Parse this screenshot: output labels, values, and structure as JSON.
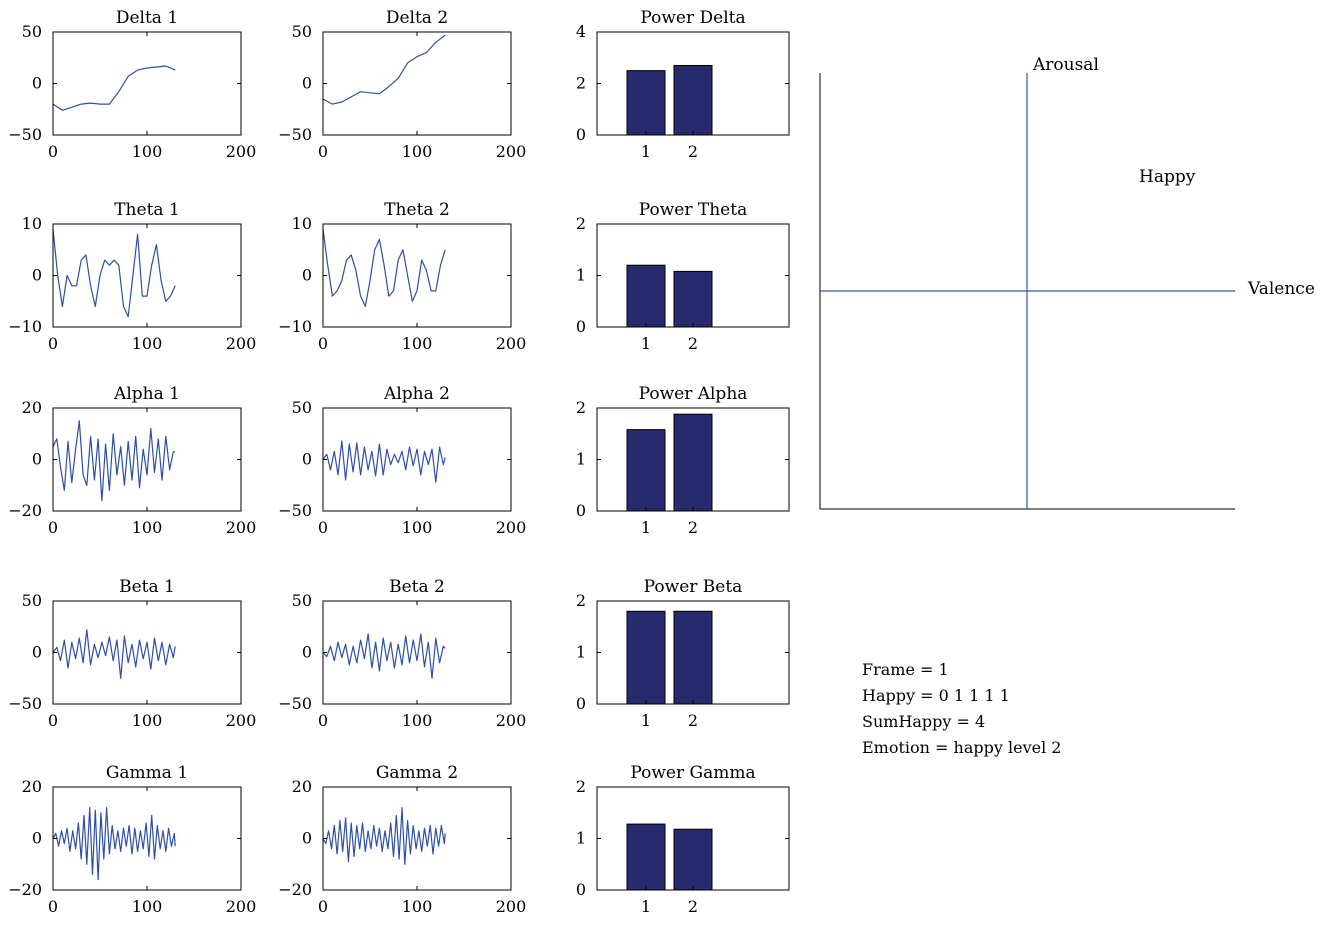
{
  "chart_data": [
    {
      "type": "line",
      "title": "Delta 1",
      "xlim": [
        0,
        200
      ],
      "ylim": [
        -50,
        50
      ],
      "xticks": [
        "0",
        "100",
        "200"
      ],
      "yticks": [
        "50",
        "0",
        "−50"
      ],
      "x": [
        0,
        10,
        20,
        30,
        40,
        50,
        60,
        70,
        80,
        90,
        100,
        110,
        120,
        130
      ],
      "y": [
        -20,
        -26,
        -23,
        -20,
        -19,
        -20,
        -20,
        -8,
        7,
        13,
        15,
        16,
        17,
        13
      ]
    },
    {
      "type": "line",
      "title": "Delta 2",
      "xlim": [
        0,
        200
      ],
      "ylim": [
        -50,
        50
      ],
      "xticks": [
        "0",
        "100",
        "200"
      ],
      "yticks": [
        "50",
        "0",
        "−50"
      ],
      "x": [
        0,
        10,
        20,
        30,
        40,
        50,
        60,
        70,
        80,
        90,
        100,
        110,
        120,
        130
      ],
      "y": [
        -15,
        -20,
        -18,
        -13,
        -8,
        -9,
        -10,
        -3,
        5,
        20,
        26,
        30,
        40,
        47
      ]
    },
    {
      "type": "bar",
      "title": "Power Delta",
      "categories": [
        "1",
        "2"
      ],
      "values": [
        2.5,
        2.7
      ],
      "ylim": [
        0,
        4
      ],
      "yticks": [
        "4",
        "2",
        "0"
      ]
    },
    {
      "type": "line",
      "title": "Theta 1",
      "xlim": [
        0,
        200
      ],
      "ylim": [
        -10,
        10
      ],
      "xticks": [
        "0",
        "100",
        "200"
      ],
      "yticks": [
        "10",
        "0",
        "−10"
      ],
      "x": [
        0,
        5,
        10,
        15,
        20,
        25,
        30,
        35,
        40,
        45,
        50,
        55,
        60,
        65,
        70,
        75,
        80,
        85,
        90,
        95,
        100,
        105,
        110,
        115,
        120,
        125,
        130
      ],
      "y": [
        9,
        0,
        -6,
        0,
        -2,
        -2,
        3,
        4,
        -2,
        -6,
        0,
        3,
        2,
        3,
        2,
        -6,
        -8,
        0,
        8,
        -4,
        -4,
        2,
        6,
        -1,
        -5,
        -4,
        -2
      ]
    },
    {
      "type": "line",
      "title": "Theta 2",
      "xlim": [
        0,
        200
      ],
      "ylim": [
        -10,
        10
      ],
      "xticks": [
        "0",
        "100",
        "200"
      ],
      "yticks": [
        "10",
        "0",
        "−10"
      ],
      "x": [
        0,
        5,
        10,
        15,
        20,
        25,
        30,
        35,
        40,
        45,
        50,
        55,
        60,
        65,
        70,
        75,
        80,
        85,
        90,
        95,
        100,
        105,
        110,
        115,
        120,
        125,
        130
      ],
      "y": [
        9,
        2,
        -4,
        -3,
        -1,
        3,
        4,
        1,
        -4,
        -6,
        -1,
        5,
        7,
        2,
        -4,
        -3,
        3,
        5,
        0,
        -5,
        -3,
        3,
        1,
        -3,
        -3,
        2,
        5
      ]
    },
    {
      "type": "bar",
      "title": "Power Theta",
      "categories": [
        "1",
        "2"
      ],
      "values": [
        1.2,
        1.08
      ],
      "ylim": [
        0,
        2
      ],
      "yticks": [
        "2",
        "1",
        "0"
      ]
    },
    {
      "type": "line",
      "title": "Alpha 1",
      "xlim": [
        0,
        200
      ],
      "ylim": [
        -20,
        20
      ],
      "xticks": [
        "0",
        "100",
        "200"
      ],
      "yticks": [
        "20",
        "0",
        "−20"
      ],
      "x": [
        0,
        4,
        8,
        12,
        16,
        20,
        24,
        28,
        32,
        36,
        40,
        44,
        48,
        52,
        56,
        60,
        64,
        68,
        72,
        76,
        80,
        84,
        88,
        92,
        96,
        100,
        104,
        108,
        112,
        116,
        120,
        124,
        128,
        130
      ],
      "y": [
        5,
        8,
        -3,
        -12,
        7,
        -9,
        4,
        15,
        -6,
        -10,
        9,
        -8,
        8,
        -16,
        6,
        -12,
        10,
        -6,
        5,
        -10,
        7,
        -8,
        9,
        -11,
        4,
        -6,
        12,
        -5,
        8,
        -8,
        9,
        -4,
        3,
        3
      ]
    },
    {
      "type": "line",
      "title": "Alpha 2",
      "xlim": [
        0,
        200
      ],
      "ylim": [
        -50,
        50
      ],
      "xticks": [
        "0",
        "100",
        "200"
      ],
      "yticks": [
        "50",
        "0",
        "−50"
      ],
      "x": [
        0,
        4,
        8,
        12,
        16,
        20,
        24,
        28,
        32,
        36,
        40,
        44,
        48,
        52,
        56,
        60,
        64,
        68,
        72,
        76,
        80,
        84,
        88,
        92,
        96,
        100,
        104,
        108,
        112,
        116,
        120,
        124,
        128,
        130
      ],
      "y": [
        0,
        5,
        -10,
        8,
        -15,
        18,
        -20,
        15,
        -12,
        16,
        -15,
        12,
        -10,
        8,
        -16,
        15,
        -15,
        10,
        -5,
        5,
        -3,
        8,
        -10,
        12,
        -6,
        10,
        -15,
        8,
        -5,
        10,
        -22,
        12,
        -5,
        2
      ]
    },
    {
      "type": "bar",
      "title": "Power Alpha",
      "categories": [
        "1",
        "2"
      ],
      "values": [
        1.58,
        1.88
      ],
      "ylim": [
        0,
        2
      ],
      "yticks": [
        "2",
        "1",
        "0"
      ]
    },
    {
      "type": "line",
      "title": "Beta 1",
      "xlim": [
        0,
        200
      ],
      "ylim": [
        -50,
        50
      ],
      "xticks": [
        "0",
        "100",
        "200"
      ],
      "yticks": [
        "50",
        "0",
        "−50"
      ],
      "x": [
        0,
        4,
        8,
        12,
        16,
        20,
        24,
        28,
        32,
        36,
        40,
        44,
        48,
        52,
        56,
        60,
        64,
        68,
        72,
        76,
        80,
        84,
        88,
        92,
        96,
        100,
        104,
        108,
        112,
        116,
        120,
        124,
        128,
        130
      ],
      "y": [
        0,
        5,
        -8,
        12,
        -15,
        10,
        -6,
        14,
        -10,
        22,
        -12,
        8,
        -5,
        10,
        -3,
        15,
        -8,
        12,
        -25,
        16,
        -10,
        8,
        -14,
        12,
        -6,
        10,
        -16,
        14,
        -8,
        10,
        -12,
        8,
        -5,
        6
      ]
    },
    {
      "type": "line",
      "title": "Beta 2",
      "xlim": [
        0,
        200
      ],
      "ylim": [
        -50,
        50
      ],
      "xticks": [
        "0",
        "100",
        "200"
      ],
      "yticks": [
        "50",
        "0",
        "−50"
      ],
      "x": [
        0,
        4,
        8,
        12,
        16,
        20,
        24,
        28,
        32,
        36,
        40,
        44,
        48,
        52,
        56,
        60,
        64,
        68,
        72,
        76,
        80,
        84,
        88,
        92,
        96,
        100,
        104,
        108,
        112,
        116,
        120,
        124,
        128,
        130
      ],
      "y": [
        0,
        -4,
        6,
        -8,
        10,
        -5,
        8,
        -12,
        6,
        -10,
        12,
        -6,
        18,
        -15,
        10,
        -18,
        14,
        -8,
        10,
        -15,
        8,
        -12,
        16,
        -10,
        12,
        -8,
        18,
        -14,
        10,
        -25,
        14,
        -10,
        6,
        4
      ]
    },
    {
      "type": "bar",
      "title": "Power Beta",
      "categories": [
        "1",
        "2"
      ],
      "values": [
        1.8,
        1.8
      ],
      "ylim": [
        0,
        2
      ],
      "yticks": [
        "2",
        "1",
        "0"
      ]
    },
    {
      "type": "line",
      "title": "Gamma 1",
      "xlim": [
        0,
        200
      ],
      "ylim": [
        -20,
        20
      ],
      "xticks": [
        "0",
        "100",
        "200"
      ],
      "yticks": [
        "20",
        "0",
        "−20"
      ],
      "x": [
        0,
        3,
        6,
        9,
        12,
        15,
        18,
        21,
        24,
        27,
        30,
        33,
        36,
        39,
        42,
        45,
        48,
        51,
        54,
        57,
        60,
        63,
        66,
        69,
        72,
        75,
        78,
        81,
        84,
        87,
        90,
        93,
        96,
        99,
        102,
        105,
        108,
        111,
        114,
        117,
        120,
        123,
        126,
        129,
        130
      ],
      "y": [
        0,
        2,
        -3,
        3,
        -2,
        4,
        -5,
        3,
        -4,
        6,
        -8,
        9,
        -10,
        12,
        -14,
        11,
        -16,
        10,
        -8,
        12,
        -6,
        5,
        -4,
        3,
        -5,
        4,
        -3,
        5,
        -6,
        4,
        -5,
        3,
        -4,
        6,
        -7,
        9,
        -8,
        5,
        -4,
        3,
        -5,
        4,
        -3,
        2,
        -3
      ]
    },
    {
      "type": "line",
      "title": "Gamma 2",
      "xlim": [
        0,
        200
      ],
      "ylim": [
        -20,
        20
      ],
      "xticks": [
        "0",
        "100",
        "200"
      ],
      "yticks": [
        "20",
        "0",
        "−20"
      ],
      "x": [
        0,
        3,
        6,
        9,
        12,
        15,
        18,
        21,
        24,
        27,
        30,
        33,
        36,
        39,
        42,
        45,
        48,
        51,
        54,
        57,
        60,
        63,
        66,
        69,
        72,
        75,
        78,
        81,
        84,
        87,
        90,
        93,
        96,
        99,
        102,
        105,
        108,
        111,
        114,
        117,
        120,
        123,
        126,
        129,
        130
      ],
      "y": [
        0,
        -2,
        3,
        -4,
        5,
        -6,
        7,
        -5,
        8,
        -9,
        6,
        -7,
        5,
        -4,
        6,
        -5,
        3,
        -4,
        5,
        -3,
        4,
        -5,
        3,
        -4,
        6,
        -7,
        9,
        -8,
        12,
        -10,
        7,
        -6,
        5,
        -4,
        3,
        -5,
        4,
        -3,
        5,
        -6,
        4,
        -3,
        5,
        -2,
        2
      ]
    },
    {
      "type": "bar",
      "title": "Power Gamma",
      "categories": [
        "1",
        "2"
      ],
      "values": [
        1.28,
        1.18
      ],
      "ylim": [
        0,
        2
      ],
      "yticks": [
        "2",
        "1",
        "0"
      ]
    }
  ],
  "emotion_plot": {
    "y_axis_label": "Arousal",
    "x_axis_label": "Valence",
    "quadrant_label": "Happy"
  },
  "info": {
    "frame": "Frame = 1",
    "happy": "Happy = 0 1 1 1 1",
    "sum_happy": "SumHappy = 4",
    "emotion": "Emotion = happy level 2"
  },
  "colors": {
    "line": "#2e4fa5",
    "bar_fill": "#272a6d",
    "axis": "#000000",
    "quadrant_line": "#3a56b0"
  }
}
